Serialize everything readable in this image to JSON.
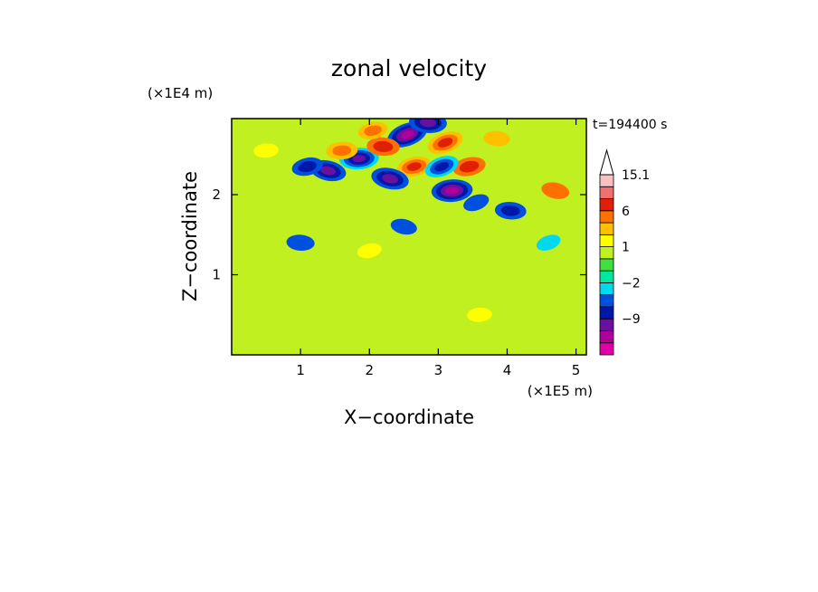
{
  "chart_data": {
    "type": "heatmap",
    "title": "zonal velocity",
    "xlabel": "X−coordinate",
    "ylabel": "Z−coordinate",
    "x_scale_note": "(×1E5 m)",
    "y_scale_note": "(×1E4 m)",
    "time_label": "t=194400 s",
    "xlim": [
      0,
      5.15
    ],
    "ylim": [
      0,
      2.95
    ],
    "x_ticks": [
      1,
      2,
      3,
      4,
      5
    ],
    "y_ticks": [
      1,
      2
    ],
    "colorbar": {
      "levels": [
        -15,
        -12,
        -9,
        -6,
        -3,
        -2,
        -1,
        0,
        1,
        2,
        3,
        6,
        9,
        12,
        15.1
      ],
      "colors": [
        "#e000a8",
        "#b0009a",
        "#6a10a0",
        "#0018a8",
        "#0050e0",
        "#00d8f0",
        "#00e8a0",
        "#40e040",
        "#c0f020",
        "#ffff00",
        "#ffc000",
        "#ff7000",
        "#e02000",
        "#f07070",
        "#f8c0c0"
      ],
      "tick_labels": [
        {
          "label": "15.1",
          "value": 15.1
        },
        {
          "label": "6",
          "value": 6
        },
        {
          "label": "1",
          "value": 1
        },
        {
          "label": "−2",
          "value": -2
        },
        {
          "label": "−9",
          "value": -9
        }
      ],
      "extend": "max"
    },
    "features": [
      {
        "x": 2.55,
        "z": 2.75,
        "value": -12
      },
      {
        "x": 2.65,
        "z": 2.35,
        "value": 8
      },
      {
        "x": 1.85,
        "z": 2.45,
        "value": -11
      },
      {
        "x": 2.2,
        "z": 2.6,
        "value": 7
      },
      {
        "x": 1.4,
        "z": 2.3,
        "value": -9
      },
      {
        "x": 3.1,
        "z": 2.65,
        "value": 9
      },
      {
        "x": 3.45,
        "z": 2.35,
        "value": 7
      },
      {
        "x": 3.2,
        "z": 2.05,
        "value": -12
      },
      {
        "x": 2.85,
        "z": 2.9,
        "value": -10
      },
      {
        "x": 2.3,
        "z": 2.2,
        "value": -10
      },
      {
        "x": 3.05,
        "z": 2.35,
        "value": -8
      },
      {
        "x": 1.1,
        "z": 2.35,
        "value": -6
      },
      {
        "x": 1.6,
        "z": 2.55,
        "value": 6
      },
      {
        "x": 4.05,
        "z": 1.8,
        "value": -6
      },
      {
        "x": 4.7,
        "z": 2.05,
        "value": 4
      },
      {
        "x": 3.55,
        "z": 1.9,
        "value": -3
      },
      {
        "x": 2.05,
        "z": 2.8,
        "value": 5
      },
      {
        "x": 0.5,
        "z": 2.55,
        "value": 2
      },
      {
        "x": 1.0,
        "z": 1.4,
        "value": -4
      },
      {
        "x": 2.5,
        "z": 1.6,
        "value": -3
      },
      {
        "x": 4.6,
        "z": 1.4,
        "value": -2
      },
      {
        "x": 2.0,
        "z": 1.3,
        "value": 2
      },
      {
        "x": 3.6,
        "z": 0.5,
        "value": 2
      },
      {
        "x": 3.85,
        "z": 2.7,
        "value": 3
      }
    ]
  }
}
